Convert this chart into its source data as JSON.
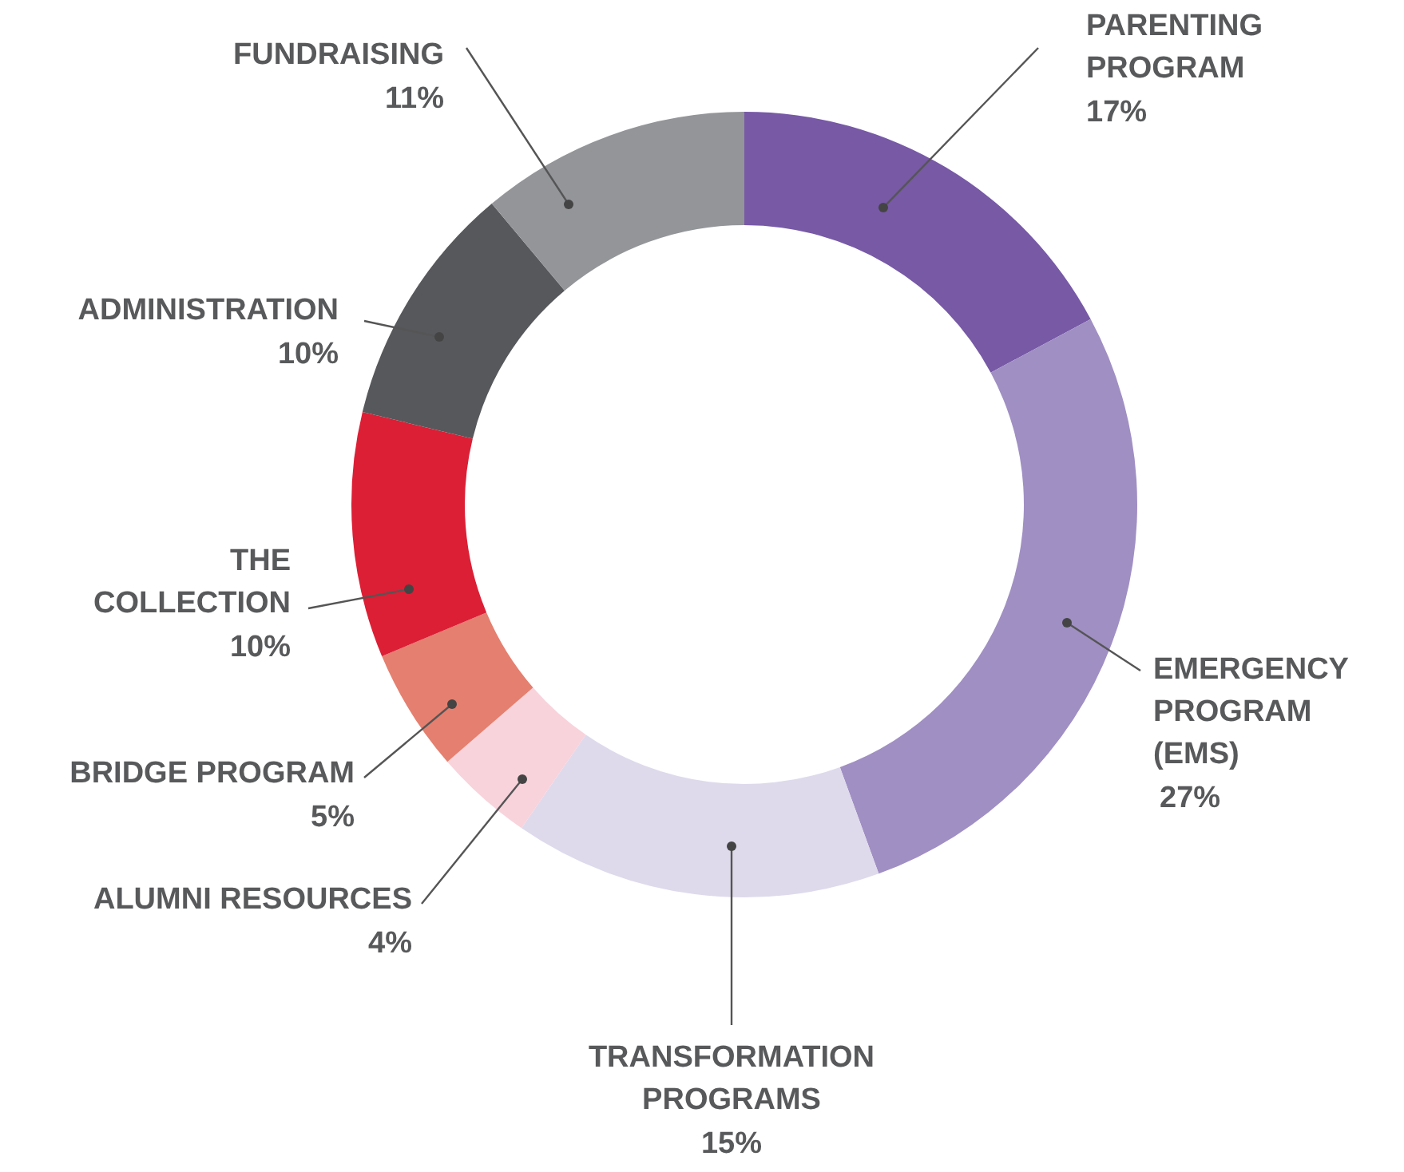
{
  "chart_data": {
    "type": "donut",
    "categories": [
      "PARENTING PROGRAM",
      "EMERGENCY PROGRAM (EMS)",
      "TRANSFORMATION PROGRAMS",
      "ALUMNI RESOURCES",
      "BRIDGE PROGRAM",
      "THE COLLECTION",
      "ADMINISTRATION",
      "FUNDRAISING"
    ],
    "values": [
      17,
      27,
      15,
      4,
      5,
      10,
      10,
      11
    ],
    "value_labels": [
      "17%",
      "27%",
      "15%",
      "4%",
      "5%",
      "10%",
      "10%",
      "11%"
    ],
    "colors": [
      "#7759a6",
      "#a08fc3",
      "#dedaec",
      "#f8d3dc",
      "#e57f6f",
      "#dc1f35",
      "#57585b",
      "#939598"
    ],
    "legend": false
  }
}
